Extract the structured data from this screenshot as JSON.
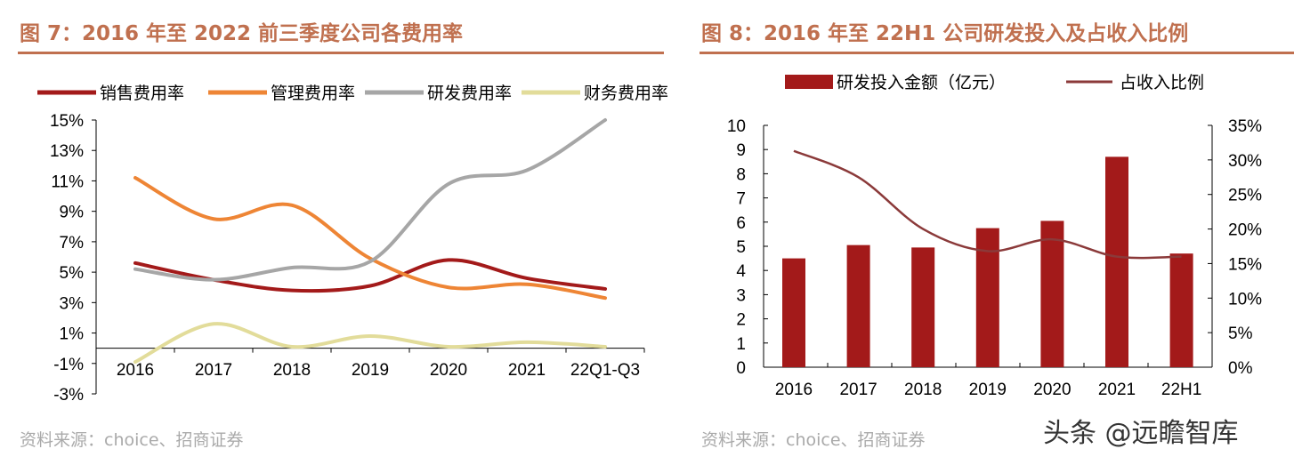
{
  "chart_data": [
    {
      "type": "line",
      "title": "图 7：2016 年至 2022 前三季度公司各费用率",
      "categories": [
        "2016",
        "2017",
        "2018",
        "2019",
        "2020",
        "2021",
        "22Q1-Q3"
      ],
      "ylim": [
        -3,
        15
      ],
      "yticks": [
        "15%",
        "13%",
        "11%",
        "9%",
        "7%",
        "5%",
        "3%",
        "1%",
        "-1%",
        "-3%"
      ],
      "legend_position": "top",
      "grid": false,
      "series": [
        {
          "name": "销售费用率",
          "color": "#a31a1a",
          "values": [
            5.6,
            4.5,
            3.8,
            4.1,
            5.8,
            4.6,
            3.9
          ]
        },
        {
          "name": "管理费用率",
          "color": "#ee8535",
          "values": [
            11.2,
            8.5,
            9.4,
            5.9,
            4.0,
            4.2,
            3.3
          ]
        },
        {
          "name": "研发费用率",
          "color": "#a6a6a6",
          "values": [
            5.2,
            4.5,
            5.3,
            5.7,
            10.8,
            11.7,
            15.0
          ]
        },
        {
          "name": "财务费用率",
          "color": "#e2dc9a",
          "values": [
            -0.9,
            1.6,
            0.1,
            0.8,
            0.1,
            0.4,
            0.1
          ]
        }
      ],
      "source": "资料来源：choice、招商证券"
    },
    {
      "type": "bar+line",
      "title": "图 8：2016 年至 22H1 公司研发投入及占收入比例",
      "categories": [
        "2016",
        "2017",
        "2018",
        "2019",
        "2020",
        "2021",
        "22H1"
      ],
      "ylim": [
        0,
        10
      ],
      "y2lim": [
        0,
        35
      ],
      "yticks": [
        "10",
        "9",
        "8",
        "7",
        "6",
        "5",
        "4",
        "3",
        "2",
        "1",
        "0"
      ],
      "y2ticks": [
        "35%",
        "30%",
        "25%",
        "20%",
        "15%",
        "10%",
        "5%",
        "0%"
      ],
      "legend_position": "top",
      "grid": false,
      "series": [
        {
          "name": "研发投入金额（亿元）",
          "type": "bar",
          "color": "#a31a1a",
          "values": [
            4.5,
            5.05,
            4.95,
            5.75,
            6.05,
            8.7,
            4.7
          ]
        },
        {
          "name": "占收入比例",
          "type": "line",
          "axis": "right",
          "color": "#8b3a3a",
          "values": [
            31.3,
            27.5,
            20.0,
            16.8,
            18.5,
            16.0,
            16.0
          ]
        }
      ],
      "source": "资料来源：choice、招商证券"
    }
  ],
  "watermark": "头条 @远瞻智库"
}
